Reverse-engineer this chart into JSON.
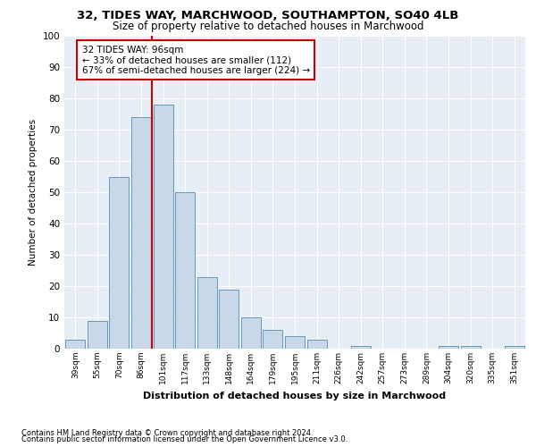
{
  "title1": "32, TIDES WAY, MARCHWOOD, SOUTHAMPTON, SO40 4LB",
  "title2": "Size of property relative to detached houses in Marchwood",
  "xlabel": "Distribution of detached houses by size in Marchwood",
  "ylabel": "Number of detached properties",
  "bar_labels": [
    "39sqm",
    "55sqm",
    "70sqm",
    "86sqm",
    "101sqm",
    "117sqm",
    "133sqm",
    "148sqm",
    "164sqm",
    "179sqm",
    "195sqm",
    "211sqm",
    "226sqm",
    "242sqm",
    "257sqm",
    "273sqm",
    "289sqm",
    "304sqm",
    "320sqm",
    "335sqm",
    "351sqm"
  ],
  "bar_heights": [
    3,
    9,
    55,
    74,
    78,
    50,
    23,
    19,
    10,
    6,
    4,
    3,
    0,
    1,
    0,
    0,
    0,
    1,
    1,
    0,
    1
  ],
  "bar_color": "#c8d8e8",
  "bar_edge_color": "#6699bb",
  "vline_x_idx": 4,
  "vline_color": "#cc0000",
  "annotation_text": "32 TIDES WAY: 96sqm\n← 33% of detached houses are smaller (112)\n67% of semi-detached houses are larger (224) →",
  "annotation_box_color": "#ffffff",
  "annotation_box_edge": "#cc0000",
  "bg_color": "#e8eef5",
  "footnote1": "Contains HM Land Registry data © Crown copyright and database right 2024.",
  "footnote2": "Contains public sector information licensed under the Open Government Licence v3.0.",
  "ylim": [
    0,
    100
  ],
  "yticks": [
    0,
    10,
    20,
    30,
    40,
    50,
    60,
    70,
    80,
    90,
    100
  ],
  "fig_width": 6.0,
  "fig_height": 5.0,
  "dpi": 100
}
